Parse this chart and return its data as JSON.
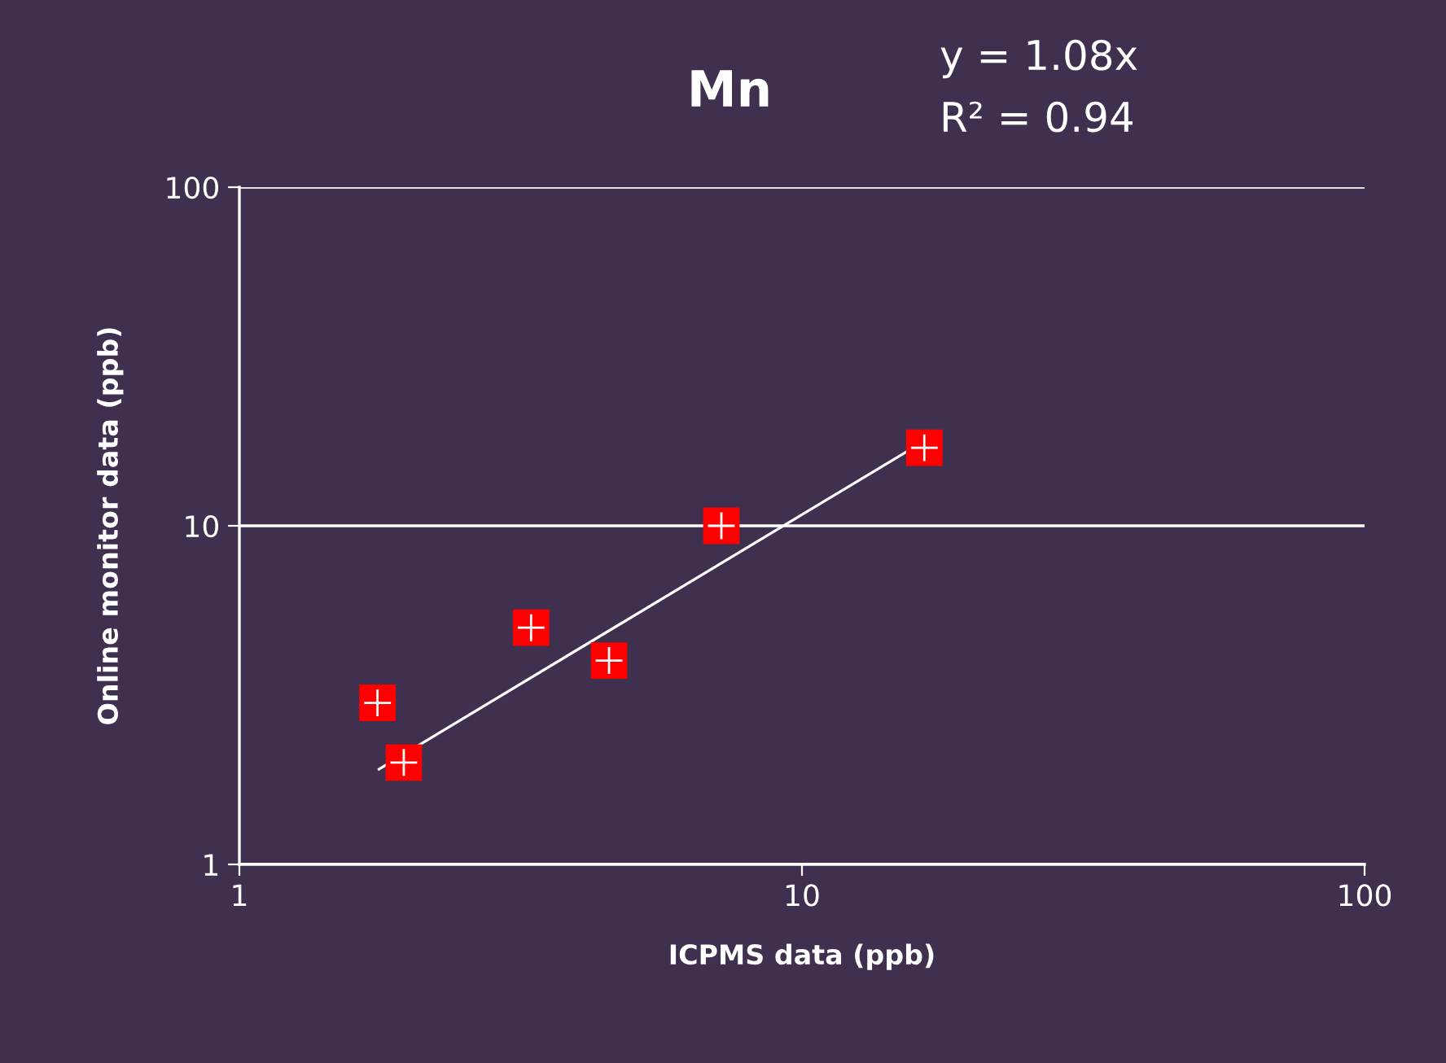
{
  "chart_data": {
    "type": "scatter",
    "title": "Mn",
    "xlabel": "ICPMS data (ppb)",
    "ylabel": "Online monitor data (ppb)",
    "annotations": [
      "y = 1.08x",
      "R² = 0.94"
    ],
    "log": "xy",
    "xlim": [
      1,
      100
    ],
    "ylim": [
      1,
      100
    ],
    "xticks": [
      1,
      10,
      100
    ],
    "yticks": [
      1,
      10,
      100
    ],
    "grid": "y",
    "marker": "square",
    "series": [
      {
        "color": "#ff0000",
        "x": [
          1.76,
          1.96,
          3.3,
          4.54,
          7.19,
          16.5
        ],
        "values": [
          3,
          2,
          5,
          4,
          10,
          17
        ]
      },
      {
        "type": "line",
        "color": "#ffffff",
        "x": [
          1.77,
          16.5
        ],
        "values": [
          1.91,
          17.8
        ],
        "marker": "none",
        "line_style": "solid"
      }
    ]
  }
}
